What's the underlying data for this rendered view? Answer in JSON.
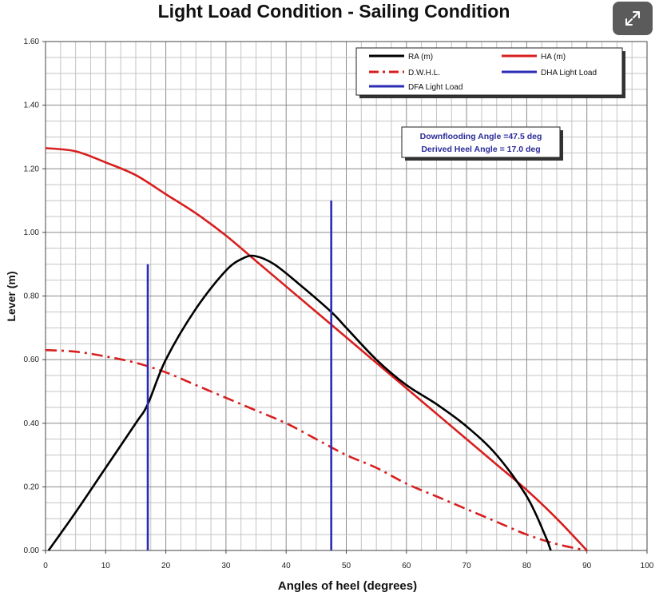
{
  "chart_data": {
    "type": "line",
    "title": "Light Load Condition - Sailing Condition",
    "xlabel": "Angles of heel (degrees)",
    "ylabel": "Lever (m)",
    "xlim": [
      0,
      100
    ],
    "ylim": [
      0,
      1.6
    ],
    "x_ticks": [
      "0",
      "10",
      "20",
      "30",
      "40",
      "50",
      "60",
      "70",
      "80",
      "90",
      "100"
    ],
    "y_ticks": [
      "0.00",
      "0.20",
      "0.40",
      "0.60",
      "0.80",
      "1.00",
      "1.20",
      "1.40",
      "1.60"
    ],
    "grid": true,
    "legend_position": "top-right",
    "annotations": [
      "Downflooding Angle =47.5 deg",
      "Derived Heel Angle = 17.0 deg"
    ],
    "series": [
      {
        "name": "RA (m)",
        "color": "#000000",
        "style": "solid",
        "points": [
          [
            0.5,
            0
          ],
          [
            5,
            0.12
          ],
          [
            10,
            0.26
          ],
          [
            15,
            0.4
          ],
          [
            17,
            0.46
          ],
          [
            20,
            0.6
          ],
          [
            25,
            0.76
          ],
          [
            30,
            0.88
          ],
          [
            33,
            0.92
          ],
          [
            35,
            0.925
          ],
          [
            38,
            0.9
          ],
          [
            42,
            0.84
          ],
          [
            47.5,
            0.75
          ],
          [
            50,
            0.7
          ],
          [
            55,
            0.6
          ],
          [
            60,
            0.52
          ],
          [
            65,
            0.46
          ],
          [
            70,
            0.39
          ],
          [
            75,
            0.3
          ],
          [
            80,
            0.17
          ],
          [
            83,
            0.05
          ],
          [
            84,
            0
          ]
        ]
      },
      {
        "name": "HA (m)",
        "color": "#d81f1f",
        "style": "solid",
        "points": [
          [
            0,
            1.265
          ],
          [
            5,
            1.255
          ],
          [
            10,
            1.22
          ],
          [
            15,
            1.18
          ],
          [
            20,
            1.12
          ],
          [
            25,
            1.06
          ],
          [
            30,
            0.99
          ],
          [
            35,
            0.91
          ],
          [
            40,
            0.83
          ],
          [
            45,
            0.75
          ],
          [
            50,
            0.67
          ],
          [
            55,
            0.59
          ],
          [
            60,
            0.51
          ],
          [
            65,
            0.43
          ],
          [
            70,
            0.35
          ],
          [
            75,
            0.27
          ],
          [
            80,
            0.19
          ],
          [
            85,
            0.1
          ],
          [
            90,
            0.0
          ]
        ]
      },
      {
        "name": "D.W.H.L.",
        "color": "#d81f1f",
        "style": "dashdot",
        "points": [
          [
            0,
            0.63
          ],
          [
            5,
            0.625
          ],
          [
            10,
            0.61
          ],
          [
            15,
            0.59
          ],
          [
            20,
            0.56
          ],
          [
            25,
            0.52
          ],
          [
            30,
            0.48
          ],
          [
            35,
            0.44
          ],
          [
            40,
            0.4
          ],
          [
            45,
            0.35
          ],
          [
            50,
            0.3
          ],
          [
            55,
            0.26
          ],
          [
            60,
            0.21
          ],
          [
            65,
            0.17
          ],
          [
            70,
            0.13
          ],
          [
            75,
            0.09
          ],
          [
            80,
            0.05
          ],
          [
            85,
            0.02
          ],
          [
            90,
            0
          ]
        ]
      },
      {
        "name": "DHA Light Load",
        "color": "#2b2bb5",
        "style": "solid",
        "points": [
          [
            17,
            0
          ],
          [
            17,
            0.9
          ]
        ]
      },
      {
        "name": "DFA Light Load",
        "color": "#2b2bb5",
        "style": "solid",
        "points": [
          [
            47.5,
            0
          ],
          [
            47.5,
            1.1
          ]
        ]
      }
    ]
  },
  "ui": {
    "expand_icon": "expand-arrows-icon"
  }
}
